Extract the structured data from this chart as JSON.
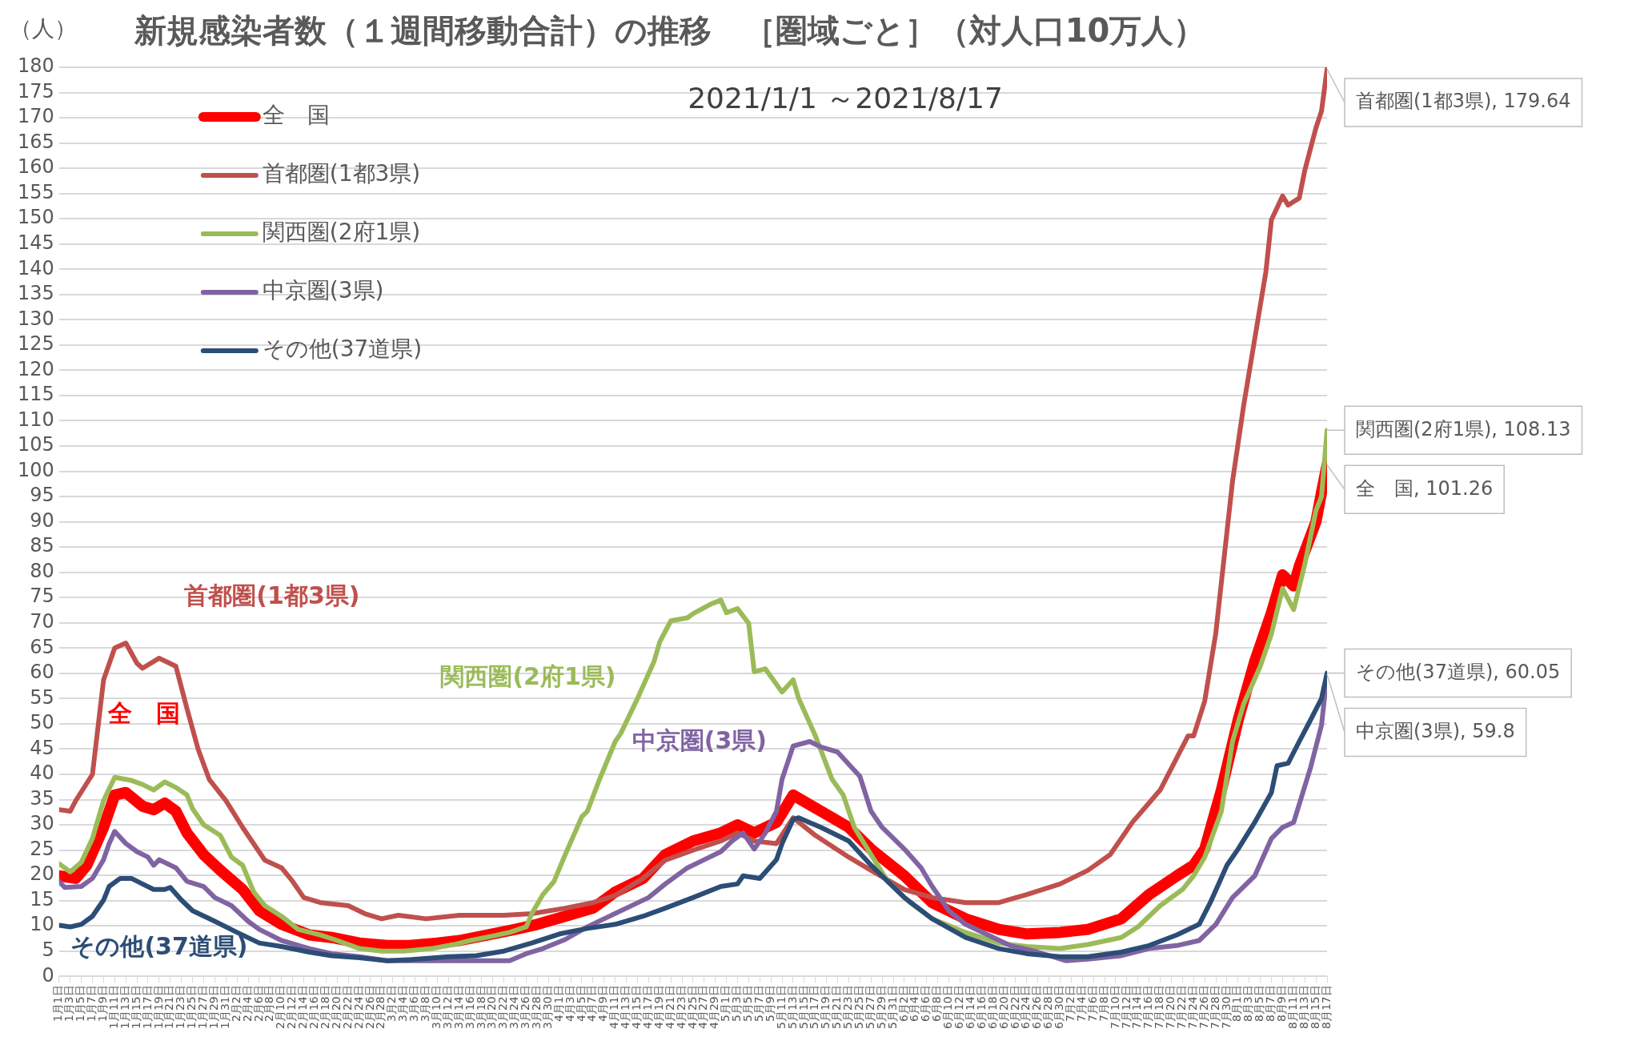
{
  "chart_data": {
    "type": "line",
    "title": "新規感染者数（１週間移動合計）の推移　［圏域ごと］（対人口10万人）",
    "subtitle": "2021/1/1 ～2021/8/17",
    "ylabel": "（人）",
    "xlim": [
      "2021-01-01",
      "2021-08-17"
    ],
    "ylim": [
      0,
      180
    ],
    "yticks": [
      0,
      5,
      10,
      15,
      20,
      25,
      30,
      35,
      40,
      45,
      50,
      55,
      60,
      65,
      70,
      75,
      80,
      85,
      90,
      95,
      100,
      105,
      110,
      115,
      120,
      125,
      130,
      135,
      140,
      145,
      150,
      155,
      160,
      165,
      170,
      175,
      180
    ],
    "xticks": [
      {
        "value": "2021-01-01",
        "label": "1月1日"
      },
      {
        "value": "2021-01-03",
        "label": "1月3日"
      },
      {
        "value": "2021-01-05",
        "label": "1月5日"
      },
      {
        "value": "2021-01-07",
        "label": "1月7日"
      },
      {
        "value": "2021-01-09",
        "label": "1月9日"
      },
      {
        "value": "2021-01-11",
        "label": "1月11日"
      },
      {
        "value": "2021-01-13",
        "label": "1月13日"
      },
      {
        "value": "2021-01-15",
        "label": "1月15日"
      },
      {
        "value": "2021-01-17",
        "label": "1月17日"
      },
      {
        "value": "2021-01-19",
        "label": "1月19日"
      },
      {
        "value": "2021-01-21",
        "label": "1月21日"
      },
      {
        "value": "2021-01-23",
        "label": "1月23日"
      },
      {
        "value": "2021-01-25",
        "label": "1月25日"
      },
      {
        "value": "2021-01-27",
        "label": "1月27日"
      },
      {
        "value": "2021-01-29",
        "label": "1月29日"
      },
      {
        "value": "2021-01-31",
        "label": "1月31日"
      },
      {
        "value": "2021-02-02",
        "label": "2月2日"
      },
      {
        "value": "2021-02-04",
        "label": "2月4日"
      },
      {
        "value": "2021-02-06",
        "label": "2月6日"
      },
      {
        "value": "2021-02-08",
        "label": "2月8日"
      },
      {
        "value": "2021-02-10",
        "label": "2月10日"
      },
      {
        "value": "2021-02-12",
        "label": "2月12日"
      },
      {
        "value": "2021-02-14",
        "label": "2月14日"
      },
      {
        "value": "2021-02-16",
        "label": "2月16日"
      },
      {
        "value": "2021-02-18",
        "label": "2月18日"
      },
      {
        "value": "2021-02-20",
        "label": "2月20日"
      },
      {
        "value": "2021-02-22",
        "label": "2月22日"
      },
      {
        "value": "2021-02-24",
        "label": "2月24日"
      },
      {
        "value": "2021-02-26",
        "label": "2月26日"
      },
      {
        "value": "2021-02-28",
        "label": "2月28日"
      },
      {
        "value": "2021-03-02",
        "label": "3月2日"
      },
      {
        "value": "2021-03-04",
        "label": "3月4日"
      },
      {
        "value": "2021-03-06",
        "label": "3月6日"
      },
      {
        "value": "2021-03-08",
        "label": "3月8日"
      },
      {
        "value": "2021-03-10",
        "label": "3月10日"
      },
      {
        "value": "2021-03-12",
        "label": "3月12日"
      },
      {
        "value": "2021-03-14",
        "label": "3月14日"
      },
      {
        "value": "2021-03-16",
        "label": "3月16日"
      },
      {
        "value": "2021-03-18",
        "label": "3月18日"
      },
      {
        "value": "2021-03-20",
        "label": "3月20日"
      },
      {
        "value": "2021-03-22",
        "label": "3月22日"
      },
      {
        "value": "2021-03-24",
        "label": "3月24日"
      },
      {
        "value": "2021-03-26",
        "label": "3月26日"
      },
      {
        "value": "2021-03-28",
        "label": "3月28日"
      },
      {
        "value": "2021-03-30",
        "label": "3月30日"
      },
      {
        "value": "2021-04-01",
        "label": "4月1日"
      },
      {
        "value": "2021-04-03",
        "label": "4月3日"
      },
      {
        "value": "2021-04-05",
        "label": "4月5日"
      },
      {
        "value": "2021-04-07",
        "label": "4月7日"
      },
      {
        "value": "2021-04-09",
        "label": "4月9日"
      },
      {
        "value": "2021-04-11",
        "label": "4月11日"
      },
      {
        "value": "2021-04-13",
        "label": "4月13日"
      },
      {
        "value": "2021-04-15",
        "label": "4月15日"
      },
      {
        "value": "2021-04-17",
        "label": "4月17日"
      },
      {
        "value": "2021-04-19",
        "label": "4月19日"
      },
      {
        "value": "2021-04-21",
        "label": "4月21日"
      },
      {
        "value": "2021-04-23",
        "label": "4月23日"
      },
      {
        "value": "2021-04-25",
        "label": "4月25日"
      },
      {
        "value": "2021-04-27",
        "label": "4月27日"
      },
      {
        "value": "2021-04-29",
        "label": "4月29日"
      },
      {
        "value": "2021-05-01",
        "label": "5月1日"
      },
      {
        "value": "2021-05-03",
        "label": "5月3日"
      },
      {
        "value": "2021-05-05",
        "label": "5月5日"
      },
      {
        "value": "2021-05-07",
        "label": "5月7日"
      },
      {
        "value": "2021-05-09",
        "label": "5月9日"
      },
      {
        "value": "2021-05-11",
        "label": "5月11日"
      },
      {
        "value": "2021-05-13",
        "label": "5月13日"
      },
      {
        "value": "2021-05-15",
        "label": "5月15日"
      },
      {
        "value": "2021-05-17",
        "label": "5月17日"
      },
      {
        "value": "2021-05-19",
        "label": "5月19日"
      },
      {
        "value": "2021-05-21",
        "label": "5月21日"
      },
      {
        "value": "2021-05-23",
        "label": "5月23日"
      },
      {
        "value": "2021-05-25",
        "label": "5月25日"
      },
      {
        "value": "2021-05-27",
        "label": "5月27日"
      },
      {
        "value": "2021-05-29",
        "label": "5月29日"
      },
      {
        "value": "2021-05-31",
        "label": "5月31日"
      },
      {
        "value": "2021-06-02",
        "label": "6月2日"
      },
      {
        "value": "2021-06-04",
        "label": "6月4日"
      },
      {
        "value": "2021-06-06",
        "label": "6月6日"
      },
      {
        "value": "2021-06-08",
        "label": "6月8日"
      },
      {
        "value": "2021-06-10",
        "label": "6月10日"
      },
      {
        "value": "2021-06-12",
        "label": "6月12日"
      },
      {
        "value": "2021-06-14",
        "label": "6月14日"
      },
      {
        "value": "2021-06-16",
        "label": "6月16日"
      },
      {
        "value": "2021-06-18",
        "label": "6月18日"
      },
      {
        "value": "2021-06-20",
        "label": "6月20日"
      },
      {
        "value": "2021-06-22",
        "label": "6月22日"
      },
      {
        "value": "2021-06-24",
        "label": "6月24日"
      },
      {
        "value": "2021-06-26",
        "label": "6月26日"
      },
      {
        "value": "2021-06-28",
        "label": "6月28日"
      },
      {
        "value": "2021-06-30",
        "label": "6月30日"
      },
      {
        "value": "2021-07-02",
        "label": "7月2日"
      },
      {
        "value": "2021-07-04",
        "label": "7月4日"
      },
      {
        "value": "2021-07-06",
        "label": "7月6日"
      },
      {
        "value": "2021-07-08",
        "label": "7月8日"
      },
      {
        "value": "2021-07-10",
        "label": "7月10日"
      },
      {
        "value": "2021-07-12",
        "label": "7月12日"
      },
      {
        "value": "2021-07-14",
        "label": "7月14日"
      },
      {
        "value": "2021-07-16",
        "label": "7月16日"
      },
      {
        "value": "2021-07-18",
        "label": "7月18日"
      },
      {
        "value": "2021-07-20",
        "label": "7月20日"
      },
      {
        "value": "2021-07-22",
        "label": "7月22日"
      },
      {
        "value": "2021-07-24",
        "label": "7月24日"
      },
      {
        "value": "2021-07-26",
        "label": "7月26日"
      },
      {
        "value": "2021-07-28",
        "label": "7月28日"
      },
      {
        "value": "2021-07-30",
        "label": "7月30日"
      },
      {
        "value": "2021-08-01",
        "label": "8月1日"
      },
      {
        "value": "2021-08-03",
        "label": "8月3日"
      },
      {
        "value": "2021-08-05",
        "label": "8月5日"
      },
      {
        "value": "2021-08-07",
        "label": "8月7日"
      },
      {
        "value": "2021-08-09",
        "label": "8月9日"
      },
      {
        "value": "2021-08-11",
        "label": "8月11日"
      },
      {
        "value": "2021-08-13",
        "label": "8月13日"
      },
      {
        "value": "2021-08-15",
        "label": "8月15日"
      },
      {
        "value": "2021-08-17",
        "label": "8月17日"
      }
    ],
    "grid": "y",
    "legend": "top left",
    "series": [
      {
        "name": "全　国",
        "color": "#ff0000",
        "x": [
          "2021-01-01",
          "2021-01-04",
          "2021-01-06",
          "2021-01-09",
          "2021-01-11",
          "2021-01-13",
          "2021-01-16",
          "2021-01-18",
          "2021-01-20",
          "2021-01-22",
          "2021-01-24",
          "2021-01-27",
          "2021-01-30",
          "2021-02-03",
          "2021-02-06",
          "2021-02-10",
          "2021-02-15",
          "2021-02-19",
          "2021-02-24",
          "2021-03-01",
          "2021-03-05",
          "2021-03-10",
          "2021-03-14",
          "2021-03-19",
          "2021-03-24",
          "2021-03-28",
          "2021-04-02",
          "2021-04-07",
          "2021-04-11",
          "2021-04-16",
          "2021-04-20",
          "2021-04-25",
          "2021-04-30",
          "2021-05-03",
          "2021-05-06",
          "2021-05-10",
          "2021-05-13",
          "2021-05-18",
          "2021-05-23",
          "2021-05-27",
          "2021-06-02",
          "2021-06-07",
          "2021-06-13",
          "2021-06-19",
          "2021-06-24",
          "2021-06-30",
          "2021-07-05",
          "2021-07-11",
          "2021-07-16",
          "2021-07-21",
          "2021-07-24",
          "2021-07-26",
          "2021-07-29",
          "2021-08-01",
          "2021-08-04",
          "2021-08-07",
          "2021-08-09",
          "2021-08-11",
          "2021-08-12",
          "2021-08-15",
          "2021-08-16",
          "2021-08-17"
        ],
        "values": [
          19.9,
          19.4,
          22,
          29.5,
          35.9,
          36.4,
          33.7,
          33,
          34.3,
          32.7,
          28.4,
          24.1,
          21,
          17.2,
          13,
          10.3,
          8.2,
          7.7,
          6.6,
          6.1,
          6.1,
          6.6,
          7.1,
          8.2,
          9.3,
          10.3,
          11.9,
          13.5,
          16.7,
          19.4,
          24.1,
          26.8,
          28.4,
          30,
          28.4,
          30.5,
          35.9,
          32.7,
          29.5,
          25.2,
          19.9,
          14.6,
          11.4,
          9.3,
          8.4,
          8.7,
          9.3,
          11.4,
          16.2,
          19.9,
          22,
          25.2,
          36.9,
          50.7,
          62.4,
          72,
          79.5,
          77.3,
          81.2,
          90,
          95.8,
          101.26
        ],
        "value_labels": [
          null,
          null,
          null,
          null,
          null,
          null,
          null,
          null,
          null,
          null,
          null,
          null,
          null,
          null,
          null,
          null,
          null,
          null,
          null,
          null,
          null,
          null,
          null,
          null,
          null,
          null,
          null,
          null,
          null,
          null,
          null,
          null,
          null,
          null,
          null,
          null,
          null,
          null,
          null,
          null,
          null,
          null,
          null,
          null,
          null,
          null,
          null,
          null,
          null,
          null,
          null,
          null,
          null,
          null,
          null,
          null,
          null,
          null,
          null,
          null,
          null,
          "全　国, 101.26"
        ]
      },
      {
        "name": "首都圏(1都3県)",
        "color": "#c0504d",
        "x": [
          "2021-01-01",
          "2021-01-03",
          "2021-01-04",
          "2021-01-07",
          "2021-01-09",
          "2021-01-11",
          "2021-01-13",
          "2021-01-15",
          "2021-01-16",
          "2021-01-19",
          "2021-01-22",
          "2021-01-24",
          "2021-01-26",
          "2021-01-28",
          "2021-01-31",
          "2021-02-03",
          "2021-02-07",
          "2021-02-10",
          "2021-02-12",
          "2021-02-14",
          "2021-02-17",
          "2021-02-22",
          "2021-02-25",
          "2021-02-28",
          "2021-03-03",
          "2021-03-08",
          "2021-03-14",
          "2021-03-22",
          "2021-03-27",
          "2021-04-02",
          "2021-04-07",
          "2021-04-11",
          "2021-04-16",
          "2021-04-20",
          "2021-04-25",
          "2021-04-30",
          "2021-05-03",
          "2021-05-06",
          "2021-05-10",
          "2021-05-13",
          "2021-05-17",
          "2021-05-23",
          "2021-05-27",
          "2021-06-02",
          "2021-06-07",
          "2021-06-13",
          "2021-06-19",
          "2021-06-24",
          "2021-06-30",
          "2021-07-05",
          "2021-07-09",
          "2021-07-13",
          "2021-07-18",
          "2021-07-23",
          "2021-07-24",
          "2021-07-26",
          "2021-07-28",
          "2021-07-30",
          "2021-07-31",
          "2021-08-02",
          "2021-08-06",
          "2021-08-07",
          "2021-08-09",
          "2021-08-10",
          "2021-08-12",
          "2021-08-13",
          "2021-08-15",
          "2021-08-16",
          "2021-08-17"
        ],
        "values": [
          33,
          32.7,
          34.8,
          40,
          58.7,
          65,
          66,
          62,
          61,
          63,
          61.4,
          53,
          45,
          39,
          34.8,
          29.5,
          23,
          21.5,
          18.8,
          15.6,
          14.6,
          14,
          12.4,
          11.4,
          12.1,
          11.4,
          12.1,
          12.1,
          12.4,
          13.5,
          14.6,
          16,
          19.4,
          23,
          25,
          26.8,
          28.4,
          26.8,
          26.3,
          31.4,
          27.9,
          23.6,
          21,
          17.2,
          15.6,
          14.6,
          14.6,
          16.2,
          18.3,
          21,
          24.1,
          30.5,
          36.9,
          47.6,
          47.6,
          54.5,
          68,
          88,
          98,
          113,
          139.5,
          149.8,
          154.5,
          152.7,
          154.1,
          159.6,
          168,
          171.3,
          179.64
        ],
        "value_labels": [
          null,
          null,
          null,
          null,
          null,
          null,
          null,
          null,
          null,
          null,
          null,
          null,
          null,
          null,
          null,
          null,
          null,
          null,
          null,
          null,
          null,
          null,
          null,
          null,
          null,
          null,
          null,
          null,
          null,
          null,
          null,
          null,
          null,
          null,
          null,
          null,
          null,
          null,
          null,
          null,
          null,
          null,
          null,
          null,
          null,
          null,
          null,
          null,
          null,
          null,
          null,
          null,
          null,
          null,
          null,
          null,
          null,
          null,
          null,
          null,
          null,
          null,
          null,
          null,
          null,
          null,
          null,
          null,
          "首都圏(1都3県), 179.64"
        ]
      },
      {
        "name": "関西圏(2府1県)",
        "color": "#9bbb59",
        "x": [
          "2021-01-01",
          "2021-01-03",
          "2021-01-05",
          "2021-01-07",
          "2021-01-09",
          "2021-01-11",
          "2021-01-14",
          "2021-01-16",
          "2021-01-18",
          "2021-01-20",
          "2021-01-22",
          "2021-01-24",
          "2021-01-25",
          "2021-01-27",
          "2021-01-30",
          "2021-02-01",
          "2021-02-03",
          "2021-02-05",
          "2021-02-07",
          "2021-02-10",
          "2021-02-13",
          "2021-02-17",
          "2021-02-20",
          "2021-02-24",
          "2021-02-28",
          "2021-03-04",
          "2021-03-09",
          "2021-03-13",
          "2021-03-16",
          "2021-03-20",
          "2021-03-23",
          "2021-03-26",
          "2021-03-27",
          "2021-03-29",
          "2021-03-31",
          "2021-04-02",
          "2021-04-05",
          "2021-04-06",
          "2021-04-08",
          "2021-04-11",
          "2021-04-12",
          "2021-04-15",
          "2021-04-18",
          "2021-04-19",
          "2021-04-21",
          "2021-04-24",
          "2021-04-25",
          "2021-04-28",
          "2021-04-30",
          "2021-05-01",
          "2021-05-03",
          "2021-05-05",
          "2021-05-06",
          "2021-05-08",
          "2021-05-11",
          "2021-05-13",
          "2021-05-14",
          "2021-05-17",
          "2021-05-20",
          "2021-05-22",
          "2021-05-24",
          "2021-05-27",
          "2021-05-30",
          "2021-06-03",
          "2021-06-07",
          "2021-06-13",
          "2021-06-19",
          "2021-06-24",
          "2021-06-30",
          "2021-07-05",
          "2021-07-11",
          "2021-07-14",
          "2021-07-18",
          "2021-07-22",
          "2021-07-24",
          "2021-07-26",
          "2021-07-29",
          "2021-07-31",
          "2021-08-02",
          "2021-08-05",
          "2021-08-07",
          "2021-08-09",
          "2021-08-11",
          "2021-08-13",
          "2021-08-15",
          "2021-08-16",
          "2021-08-17"
        ],
        "values": [
          22.3,
          20.7,
          22.6,
          27.3,
          34.8,
          39.4,
          38.8,
          38,
          36.9,
          38.5,
          37.4,
          35.9,
          33.2,
          30,
          27.9,
          23.6,
          22,
          16.7,
          14,
          11.9,
          9.3,
          8.2,
          7.1,
          5.5,
          5,
          5,
          5.5,
          6.3,
          7.1,
          8,
          8.7,
          9.8,
          12.4,
          16.2,
          18.8,
          24.1,
          31.6,
          32.7,
          38.5,
          46.5,
          48.1,
          55,
          62.4,
          66.2,
          70.4,
          71,
          71.8,
          73.6,
          74.5,
          72,
          72.8,
          69.9,
          60.3,
          60.9,
          56.3,
          58.7,
          55,
          47.6,
          39,
          35.9,
          29.5,
          24.1,
          18.8,
          14.6,
          11.4,
          8.7,
          6.6,
          5.9,
          5.5,
          6.3,
          7.7,
          9.8,
          14,
          17.2,
          19.9,
          23.6,
          32.7,
          46.5,
          53.9,
          61.4,
          67.8,
          76.8,
          72.6,
          81.6,
          92.2,
          95,
          108.13
        ],
        "value_labels": [
          null,
          null,
          null,
          null,
          null,
          null,
          null,
          null,
          null,
          null,
          null,
          null,
          null,
          null,
          null,
          null,
          null,
          null,
          null,
          null,
          null,
          null,
          null,
          null,
          null,
          null,
          null,
          null,
          null,
          null,
          null,
          null,
          null,
          null,
          null,
          null,
          null,
          null,
          null,
          null,
          null,
          null,
          null,
          null,
          null,
          null,
          null,
          null,
          null,
          null,
          null,
          null,
          null,
          null,
          null,
          null,
          null,
          null,
          null,
          null,
          null,
          null,
          null,
          null,
          null,
          null,
          null,
          null,
          null,
          null,
          null,
          null,
          null,
          null,
          null,
          null,
          null,
          null,
          null,
          null,
          null,
          null,
          null,
          null,
          null,
          null,
          "関西圏(2府1県), 108.13"
        ]
      },
      {
        "name": "中京圏(3県)",
        "color": "#8064a2",
        "x": [
          "2021-01-01",
          "2021-01-02",
          "2021-01-05",
          "2021-01-07",
          "2021-01-09",
          "2021-01-10",
          "2021-01-11",
          "2021-01-13",
          "2021-01-15",
          "2021-01-17",
          "2021-01-18",
          "2021-01-19",
          "2021-01-22",
          "2021-01-24",
          "2021-01-27",
          "2021-01-29",
          "2021-02-01",
          "2021-02-04",
          "2021-02-06",
          "2021-02-10",
          "2021-02-15",
          "2021-02-19",
          "2021-02-24",
          "2021-03-01",
          "2021-03-05",
          "2021-03-12",
          "2021-03-17",
          "2021-03-23",
          "2021-03-26",
          "2021-03-29",
          "2021-04-02",
          "2021-04-06",
          "2021-04-09",
          "2021-04-13",
          "2021-04-17",
          "2021-04-20",
          "2021-04-24",
          "2021-04-27",
          "2021-04-30",
          "2021-05-02",
          "2021-05-04",
          "2021-05-06",
          "2021-05-08",
          "2021-05-10",
          "2021-05-11",
          "2021-05-13",
          "2021-05-16",
          "2021-05-18",
          "2021-05-21",
          "2021-05-25",
          "2021-05-27",
          "2021-05-29",
          "2021-06-02",
          "2021-06-05",
          "2021-06-07",
          "2021-06-10",
          "2021-06-13",
          "2021-06-17",
          "2021-06-21",
          "2021-06-26",
          "2021-07-01",
          "2021-07-05",
          "2021-07-11",
          "2021-07-16",
          "2021-07-21",
          "2021-07-25",
          "2021-07-28",
          "2021-07-31",
          "2021-08-04",
          "2021-08-07",
          "2021-08-09",
          "2021-08-11",
          "2021-08-14",
          "2021-08-16",
          "2021-08-17"
        ],
        "values": [
          18.8,
          17.6,
          17.8,
          19.4,
          23.1,
          26.3,
          28.7,
          26.3,
          24.7,
          23.6,
          22,
          23.1,
          21.5,
          18.8,
          17.8,
          15.6,
          14,
          10.9,
          9.3,
          7.1,
          5.5,
          4.5,
          3.9,
          3.1,
          3.1,
          3.1,
          3.1,
          3.1,
          4.5,
          5.5,
          7.3,
          9.8,
          11.4,
          13.5,
          15.6,
          18.3,
          21.5,
          23.1,
          24.7,
          26.8,
          28.4,
          25.2,
          28.4,
          32.7,
          39,
          45.6,
          46.5,
          45.4,
          44.4,
          39.6,
          32.7,
          29.5,
          25.2,
          21.5,
          17.8,
          13,
          10.3,
          8.2,
          6.1,
          4.8,
          3.1,
          3.4,
          4.1,
          5.5,
          6.1,
          7.1,
          10.3,
          15.6,
          19.9,
          27.3,
          29.5,
          30.5,
          41.2,
          49.7,
          59.8
        ],
        "value_labels": [
          null,
          null,
          null,
          null,
          null,
          null,
          null,
          null,
          null,
          null,
          null,
          null,
          null,
          null,
          null,
          null,
          null,
          null,
          null,
          null,
          null,
          null,
          null,
          null,
          null,
          null,
          null,
          null,
          null,
          null,
          null,
          null,
          null,
          null,
          null,
          null,
          null,
          null,
          null,
          null,
          null,
          null,
          null,
          null,
          null,
          null,
          null,
          null,
          null,
          null,
          null,
          null,
          null,
          null,
          null,
          null,
          null,
          null,
          null,
          null,
          null,
          null,
          null,
          null,
          null,
          null,
          null,
          null,
          null,
          null,
          null,
          null,
          null,
          null,
          "中京圏(3県), 59.8"
        ]
      },
      {
        "name": "その他(37道県)",
        "color": "#2c4d75",
        "x": [
          "2021-01-01",
          "2021-01-03",
          "2021-01-05",
          "2021-01-07",
          "2021-01-09",
          "2021-01-10",
          "2021-01-12",
          "2021-01-14",
          "2021-01-16",
          "2021-01-18",
          "2021-01-20",
          "2021-01-21",
          "2021-01-23",
          "2021-01-25",
          "2021-01-29",
          "2021-02-02",
          "2021-02-06",
          "2021-02-10",
          "2021-02-15",
          "2021-02-19",
          "2021-02-24",
          "2021-03-01",
          "2021-03-05",
          "2021-03-12",
          "2021-03-17",
          "2021-03-22",
          "2021-03-27",
          "2021-04-01",
          "2021-04-06",
          "2021-04-11",
          "2021-04-16",
          "2021-04-20",
          "2021-04-25",
          "2021-04-30",
          "2021-05-03",
          "2021-05-04",
          "2021-05-07",
          "2021-05-10",
          "2021-05-11",
          "2021-05-13",
          "2021-05-14",
          "2021-05-18",
          "2021-05-23",
          "2021-05-27",
          "2021-06-02",
          "2021-06-07",
          "2021-06-13",
          "2021-06-19",
          "2021-06-24",
          "2021-06-30",
          "2021-07-05",
          "2021-07-11",
          "2021-07-16",
          "2021-07-21",
          "2021-07-25",
          "2021-07-27",
          "2021-07-30",
          "2021-08-01",
          "2021-08-04",
          "2021-08-07",
          "2021-08-08",
          "2021-08-10",
          "2021-08-12",
          "2021-08-14",
          "2021-08-16",
          "2021-08-17"
        ],
        "values": [
          10.1,
          9.8,
          10.3,
          11.9,
          15.1,
          17.8,
          19.4,
          19.4,
          18.3,
          17.2,
          17.2,
          17.6,
          15.1,
          13,
          10.9,
          8.7,
          6.6,
          5.9,
          4.8,
          4.1,
          3.7,
          3.1,
          3.3,
          3.9,
          4.1,
          5,
          6.6,
          8.4,
          9.5,
          10.3,
          11.9,
          13.5,
          15.6,
          17.8,
          18.3,
          19.9,
          19.4,
          23.1,
          26.3,
          31.1,
          31.4,
          29.5,
          26.8,
          22,
          15.6,
          11.4,
          7.7,
          5.5,
          4.5,
          3.9,
          3.9,
          4.8,
          6.1,
          8.2,
          10.3,
          14.6,
          22,
          25.2,
          30.5,
          36.4,
          41.7,
          42.2,
          46.5,
          50.7,
          55,
          60.05
        ],
        "value_labels": [
          null,
          null,
          null,
          null,
          null,
          null,
          null,
          null,
          null,
          null,
          null,
          null,
          null,
          null,
          null,
          null,
          null,
          null,
          null,
          null,
          null,
          null,
          null,
          null,
          null,
          null,
          null,
          null,
          null,
          null,
          null,
          null,
          null,
          null,
          null,
          null,
          null,
          null,
          null,
          null,
          null,
          null,
          null,
          null,
          null,
          null,
          null,
          null,
          null,
          null,
          null,
          null,
          null,
          null,
          null,
          null,
          null,
          null,
          null,
          null,
          null,
          null,
          null,
          null,
          null,
          "その他(37道県), 60.05"
        ]
      }
    ],
    "annotations": [
      "全　国",
      "首都圏(1都3県)",
      "関西圏(2府1県)",
      "中京圏(3県)",
      "その他(37道県)"
    ]
  }
}
